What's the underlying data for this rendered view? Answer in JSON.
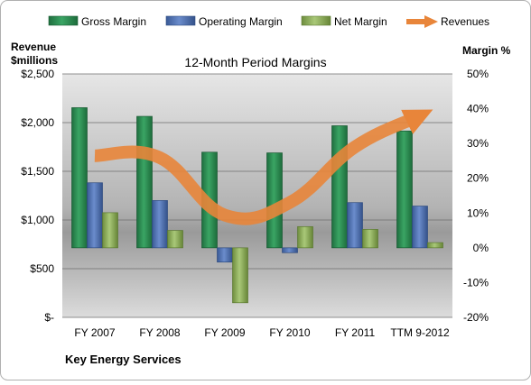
{
  "chart_data": {
    "type": "bar",
    "title": "12-Month Period Margins",
    "left_axis_title_line1": "Revenue",
    "left_axis_title_line2": "$millions",
    "right_axis_title": "Margin %",
    "footer": "Key Energy Services",
    "categories": [
      "FY 2007",
      "FY 2008",
      "FY 2009",
      "FY 2010",
      "FY 2011",
      "TTM 9-2012"
    ],
    "left_axis": {
      "ticks": [
        0,
        500,
        1000,
        1500,
        2000,
        2500
      ],
      "tick_labels": [
        "$-",
        "$500",
        "$1,000",
        "$1,500",
        "$2,000",
        "$2,500"
      ],
      "range": [
        0,
        2500
      ]
    },
    "right_axis": {
      "ticks": [
        -20,
        -10,
        0,
        10,
        20,
        30,
        40,
        50
      ],
      "tick_labels": [
        "-20%",
        "-10%",
        "0%",
        "10%",
        "20%",
        "30%",
        "40%",
        "50%"
      ],
      "range": [
        -20,
        50
      ]
    },
    "series": [
      {
        "name": "Gross Margin",
        "kind": "bar",
        "axis": "right",
        "color": "#2e8b57",
        "values": [
          40.3,
          37.8,
          27.5,
          27.3,
          35.1,
          33.6
        ]
      },
      {
        "name": "Operating Margin",
        "kind": "bar",
        "axis": "right",
        "color": "#4f73b8",
        "values": [
          18.7,
          13.6,
          -4.1,
          -1.4,
          13.0,
          12.0
        ]
      },
      {
        "name": "Net Margin",
        "kind": "bar",
        "axis": "right",
        "color": "#8db05a",
        "values": [
          10.1,
          5.0,
          -15.8,
          6.1,
          5.3,
          1.5
        ]
      },
      {
        "name": "Revenues",
        "kind": "line",
        "axis": "left",
        "color": "#e8853a",
        "values": [
          1660,
          1640,
          1050,
          1180,
          1750,
          2070
        ]
      }
    ],
    "legend_position": "top",
    "grid": true
  }
}
